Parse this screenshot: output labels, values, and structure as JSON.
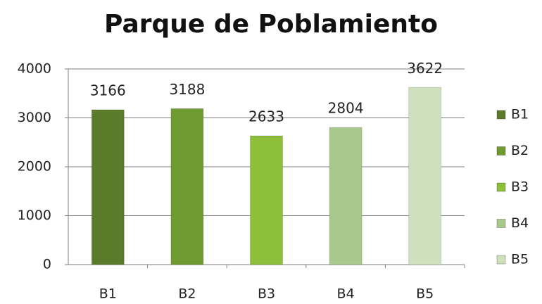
{
  "chart_data": {
    "type": "bar",
    "title": "Parque de Poblamiento",
    "categories": [
      "B1",
      "B2",
      "B3",
      "B4",
      "B5"
    ],
    "values": [
      3166,
      3188,
      2633,
      2804,
      3622
    ],
    "colors": [
      "#5b7b2b",
      "#6f9b30",
      "#8dbf3b",
      "#a8c98b",
      "#cfe0bd"
    ],
    "ylim": [
      0,
      4000
    ],
    "yticks": [
      0,
      1000,
      2000,
      3000,
      4000
    ],
    "grid": true,
    "legend": "right"
  }
}
